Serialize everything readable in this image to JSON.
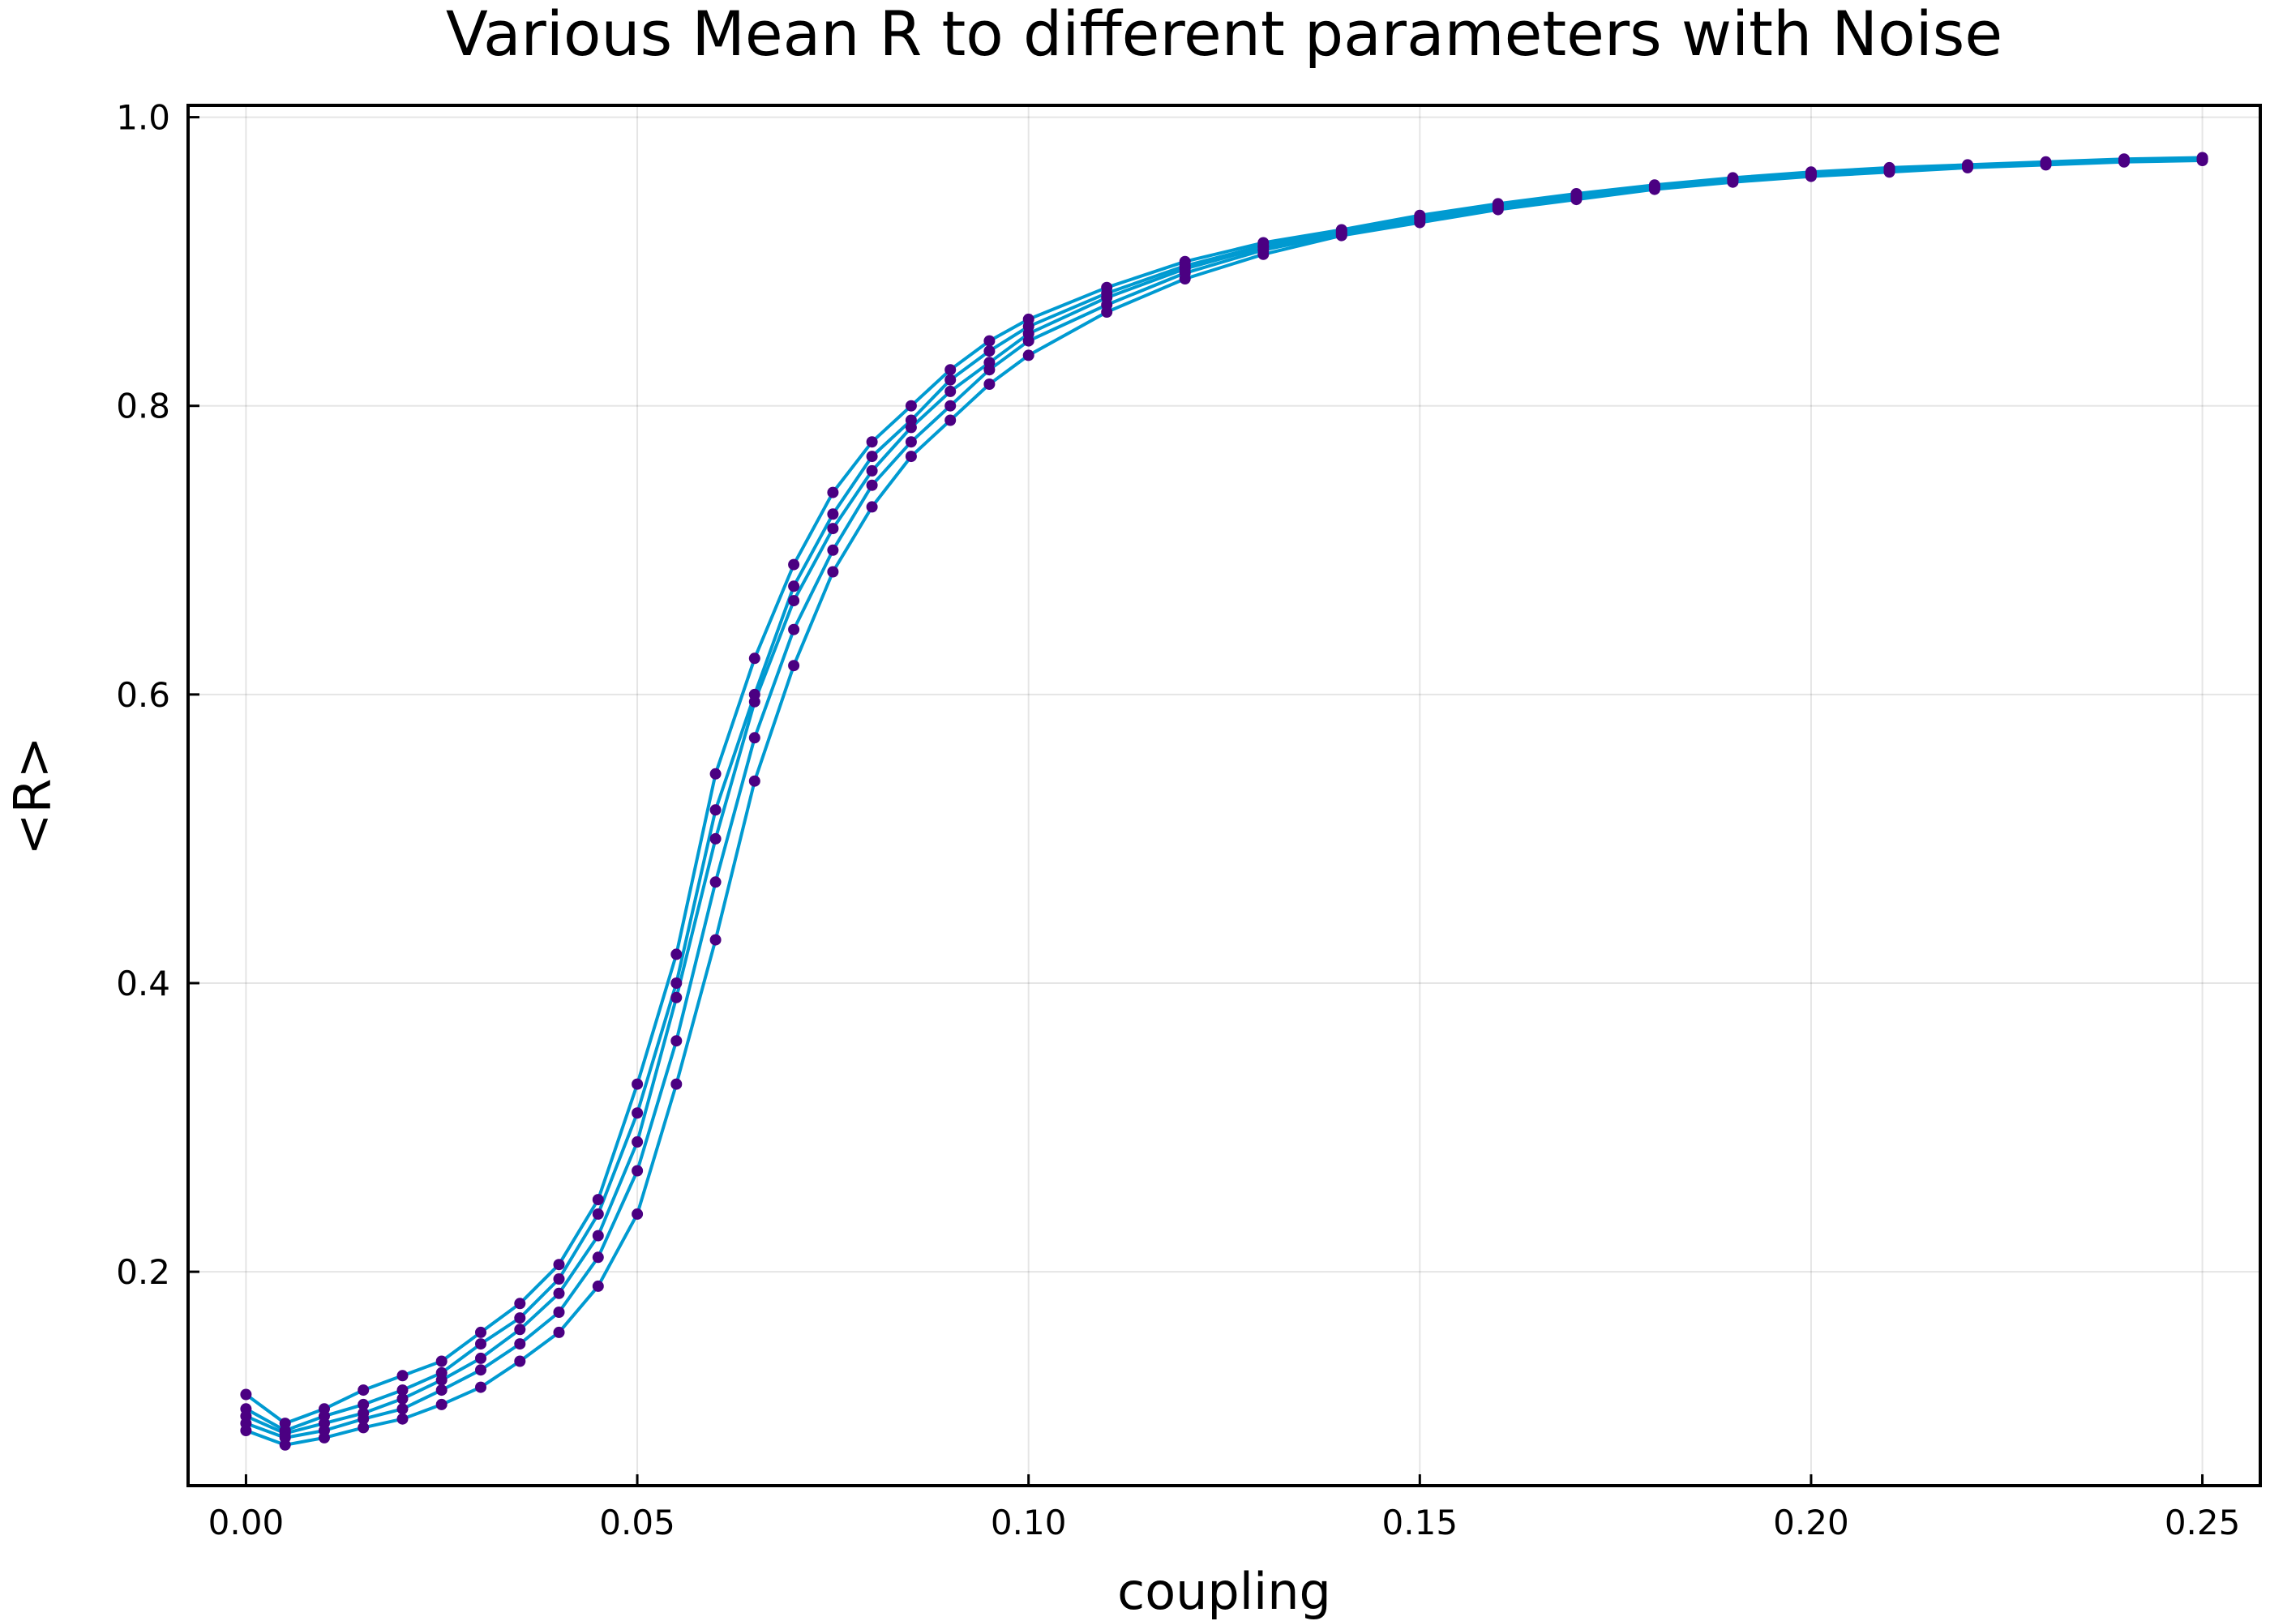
{
  "chart_data": {
    "type": "line",
    "title": "Various Mean R to different parameters with Noise",
    "xlabel": "coupling",
    "ylabel": "<R>",
    "xlim": [
      -0.0074,
      0.2574
    ],
    "ylim": [
      0.0518,
      1.0082
    ],
    "xticks": [
      0.0,
      0.05,
      0.1,
      0.15,
      0.2,
      0.25
    ],
    "xtick_labels": [
      "0.00",
      "0.05",
      "0.10",
      "0.15",
      "0.20",
      "0.25"
    ],
    "yticks": [
      0.2,
      0.4,
      0.6,
      0.8,
      1.0
    ],
    "ytick_labels": [
      "0.2",
      "0.4",
      "0.6",
      "0.8",
      "1.0"
    ],
    "grid": true,
    "legend": "none",
    "line_color": "#009AD1",
    "marker_color": "#4B0082",
    "series": [
      {
        "x": [
          0.0,
          0.005,
          0.01,
          0.015,
          0.02,
          0.025,
          0.03,
          0.035,
          0.04,
          0.045,
          0.05,
          0.055,
          0.06,
          0.065,
          0.07,
          0.075,
          0.08,
          0.085,
          0.09,
          0.095,
          0.1,
          0.11,
          0.12,
          0.13,
          0.14,
          0.15,
          0.16,
          0.17,
          0.18,
          0.19,
          0.2,
          0.21,
          0.22,
          0.23,
          0.24,
          0.25
        ],
        "y": [
          0.1,
          0.088,
          0.095,
          0.102,
          0.112,
          0.125,
          0.14,
          0.16,
          0.185,
          0.225,
          0.29,
          0.39,
          0.5,
          0.595,
          0.665,
          0.715,
          0.755,
          0.785,
          0.81,
          0.83,
          0.85,
          0.875,
          0.895,
          0.91,
          0.92,
          0.93,
          0.938,
          0.945,
          0.952,
          0.957,
          0.961,
          0.964,
          0.966,
          0.968,
          0.97,
          0.971
        ]
      },
      {
        "x": [
          0.0,
          0.005,
          0.01,
          0.015,
          0.02,
          0.025,
          0.03,
          0.035,
          0.04,
          0.045,
          0.05,
          0.055,
          0.06,
          0.065,
          0.07,
          0.075,
          0.08,
          0.085,
          0.09,
          0.095,
          0.1,
          0.11,
          0.12,
          0.13,
          0.14,
          0.15,
          0.16,
          0.17,
          0.18,
          0.19,
          0.2,
          0.21,
          0.22,
          0.23,
          0.24,
          0.25
        ],
        "y": [
          0.115,
          0.095,
          0.105,
          0.118,
          0.128,
          0.138,
          0.158,
          0.178,
          0.205,
          0.25,
          0.33,
          0.42,
          0.545,
          0.625,
          0.69,
          0.74,
          0.775,
          0.8,
          0.825,
          0.845,
          0.86,
          0.882,
          0.9,
          0.913,
          0.922,
          0.932,
          0.94,
          0.947,
          0.953,
          0.958,
          0.962,
          0.965,
          0.967,
          0.969,
          0.971,
          0.972
        ]
      },
      {
        "x": [
          0.0,
          0.005,
          0.01,
          0.015,
          0.02,
          0.025,
          0.03,
          0.035,
          0.04,
          0.045,
          0.05,
          0.055,
          0.06,
          0.065,
          0.07,
          0.075,
          0.08,
          0.085,
          0.09,
          0.095,
          0.1,
          0.11,
          0.12,
          0.13,
          0.14,
          0.15,
          0.16,
          0.17,
          0.18,
          0.19,
          0.2,
          0.21,
          0.22,
          0.23,
          0.24,
          0.25
        ],
        "y": [
          0.09,
          0.08,
          0.085,
          0.092,
          0.098,
          0.108,
          0.12,
          0.138,
          0.158,
          0.19,
          0.24,
          0.33,
          0.43,
          0.54,
          0.62,
          0.685,
          0.73,
          0.765,
          0.79,
          0.815,
          0.835,
          0.865,
          0.888,
          0.905,
          0.918,
          0.927,
          0.936,
          0.943,
          0.95,
          0.955,
          0.959,
          0.962,
          0.965,
          0.967,
          0.969,
          0.97
        ]
      },
      {
        "x": [
          0.0,
          0.005,
          0.01,
          0.015,
          0.02,
          0.025,
          0.03,
          0.035,
          0.04,
          0.045,
          0.05,
          0.055,
          0.06,
          0.065,
          0.07,
          0.075,
          0.08,
          0.085,
          0.09,
          0.095,
          0.1,
          0.11,
          0.12,
          0.13,
          0.14,
          0.15,
          0.16,
          0.17,
          0.18,
          0.19,
          0.2,
          0.21,
          0.22,
          0.23,
          0.24,
          0.25
        ],
        "y": [
          0.105,
          0.09,
          0.1,
          0.108,
          0.118,
          0.13,
          0.15,
          0.168,
          0.195,
          0.24,
          0.31,
          0.4,
          0.52,
          0.6,
          0.675,
          0.725,
          0.765,
          0.79,
          0.818,
          0.838,
          0.855,
          0.878,
          0.897,
          0.911,
          0.921,
          0.931,
          0.939,
          0.946,
          0.952,
          0.957,
          0.961,
          0.964,
          0.966,
          0.968,
          0.97,
          0.971
        ]
      },
      {
        "x": [
          0.0,
          0.005,
          0.01,
          0.015,
          0.02,
          0.025,
          0.03,
          0.035,
          0.04,
          0.045,
          0.05,
          0.055,
          0.06,
          0.065,
          0.07,
          0.075,
          0.08,
          0.085,
          0.09,
          0.095,
          0.1,
          0.11,
          0.12,
          0.13,
          0.14,
          0.15,
          0.16,
          0.17,
          0.18,
          0.19,
          0.2,
          0.21,
          0.22,
          0.23,
          0.24,
          0.25
        ],
        "y": [
          0.095,
          0.085,
          0.09,
          0.098,
          0.105,
          0.118,
          0.132,
          0.15,
          0.172,
          0.21,
          0.27,
          0.36,
          0.47,
          0.57,
          0.645,
          0.7,
          0.745,
          0.775,
          0.8,
          0.825,
          0.845,
          0.87,
          0.892,
          0.908,
          0.919,
          0.929,
          0.937,
          0.944,
          0.951,
          0.956,
          0.96,
          0.963,
          0.966,
          0.968,
          0.97,
          0.971
        ]
      }
    ]
  }
}
